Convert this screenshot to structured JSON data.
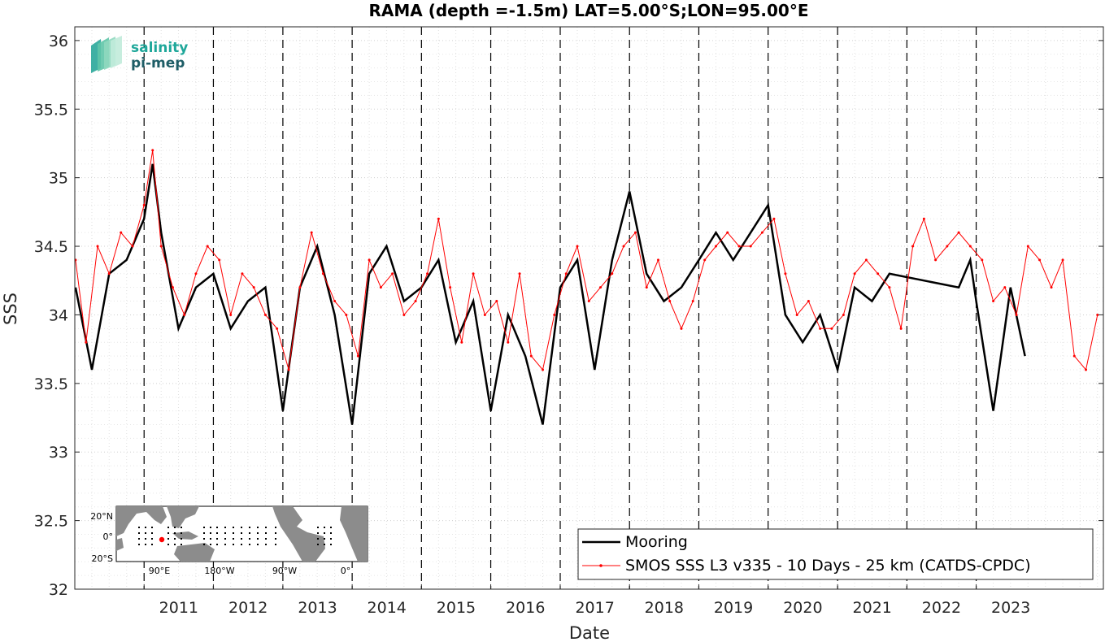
{
  "chart_data": {
    "type": "line",
    "title": "RAMA (depth =-1.5m) LAT=5.00°S;LON=95.00°E",
    "xlabel": "Date",
    "ylabel": "SSS",
    "xlim": [
      "2010-01-01",
      "2024-11-01"
    ],
    "ylim": [
      32,
      36.1
    ],
    "yticks": [
      "32",
      "32.5",
      "33",
      "33.5",
      "34",
      "34.5",
      "35",
      "35.5",
      "36"
    ],
    "xticks": [
      "2011",
      "2012",
      "2013",
      "2014",
      "2015",
      "2016",
      "2017",
      "2018",
      "2019",
      "2020",
      "2021",
      "2022",
      "2023"
    ],
    "year_boundaries": [
      "2011-01-01",
      "2012-01-01",
      "2013-01-01",
      "2014-01-01",
      "2015-01-01",
      "2016-01-01",
      "2017-01-01",
      "2018-01-01",
      "2019-01-01",
      "2020-01-01",
      "2021-01-01",
      "2022-01-01",
      "2023-01-01"
    ],
    "grid": true,
    "legend_position": "bottom-right",
    "series": [
      {
        "name": "Mooring",
        "color": "#000000",
        "x": [
          "2010-01-05",
          "2010-04-01",
          "2010-07-01",
          "2010-10-01",
          "2011-01-01",
          "2011-02-15",
          "2011-04-01",
          "2011-07-01",
          "2011-10-01",
          "2012-01-01",
          "2012-04-01",
          "2012-07-01",
          "2012-10-01",
          "2013-01-01",
          "2013-04-01",
          "2013-07-01",
          "2013-10-01",
          "2014-01-01",
          "2014-04-01",
          "2014-07-01",
          "2014-10-01",
          "2015-01-01",
          "2015-04-01",
          "2015-07-01",
          "2015-10-01",
          "2016-01-01",
          "2016-04-01",
          "2016-07-01",
          "2016-10-01",
          "2017-01-01",
          "2017-04-01",
          "2017-07-01",
          "2017-10-01",
          "2018-01-01",
          "2018-04-01",
          "2018-07-01",
          "2018-10-01",
          "2019-01-01",
          "2019-04-01",
          "2019-07-01",
          "2019-10-01",
          "2020-01-01",
          "2020-04-01",
          "2020-07-01",
          "2020-10-01",
          "2021-01-01",
          "2021-04-01",
          "2021-07-01",
          "2021-10-01",
          "2022-10-01",
          "2022-12-01",
          "2023-01-01",
          "2023-04-01",
          "2023-07-01",
          "2023-09-15"
        ],
        "y": [
          34.2,
          33.6,
          34.3,
          34.4,
          34.7,
          35.1,
          34.6,
          33.9,
          34.2,
          34.3,
          33.9,
          34.1,
          34.2,
          33.3,
          34.2,
          34.5,
          34.0,
          33.2,
          34.3,
          34.5,
          34.1,
          34.2,
          34.4,
          33.8,
          34.1,
          33.3,
          34.0,
          33.7,
          33.2,
          34.2,
          34.4,
          33.6,
          34.4,
          34.9,
          34.3,
          34.1,
          34.2,
          34.4,
          34.6,
          34.4,
          34.6,
          34.8,
          34.0,
          33.8,
          34.0,
          33.6,
          34.2,
          34.1,
          34.3,
          34.2,
          34.4,
          34.1,
          33.3,
          34.2,
          33.7
        ]
      },
      {
        "name": "SMOS SSS L3 v335 - 10 Days - 25 km (CATDS-CPDC)",
        "color": "#ff0000",
        "x": [
          "2010-01-05",
          "2010-03-01",
          "2010-05-01",
          "2010-07-01",
          "2010-09-01",
          "2010-11-01",
          "2011-01-01",
          "2011-02-15",
          "2011-04-01",
          "2011-06-01",
          "2011-08-01",
          "2011-10-01",
          "2011-12-01",
          "2012-02-01",
          "2012-04-01",
          "2012-06-01",
          "2012-08-01",
          "2012-10-01",
          "2012-12-01",
          "2013-02-01",
          "2013-04-01",
          "2013-06-01",
          "2013-08-01",
          "2013-10-01",
          "2013-12-01",
          "2014-02-01",
          "2014-04-01",
          "2014-06-01",
          "2014-08-01",
          "2014-10-01",
          "2014-12-01",
          "2015-02-01",
          "2015-04-01",
          "2015-06-01",
          "2015-08-01",
          "2015-10-01",
          "2015-12-01",
          "2016-02-01",
          "2016-04-01",
          "2016-06-01",
          "2016-08-01",
          "2016-10-01",
          "2016-12-01",
          "2017-02-01",
          "2017-04-01",
          "2017-06-01",
          "2017-08-01",
          "2017-10-01",
          "2017-12-01",
          "2018-02-01",
          "2018-04-01",
          "2018-06-01",
          "2018-08-01",
          "2018-10-01",
          "2018-12-01",
          "2019-02-01",
          "2019-04-01",
          "2019-06-01",
          "2019-08-01",
          "2019-10-01",
          "2019-12-01",
          "2020-02-01",
          "2020-04-01",
          "2020-06-01",
          "2020-08-01",
          "2020-10-01",
          "2020-12-01",
          "2021-02-01",
          "2021-04-01",
          "2021-06-01",
          "2021-08-01",
          "2021-10-01",
          "2021-12-01",
          "2022-02-01",
          "2022-04-01",
          "2022-06-01",
          "2022-08-01",
          "2022-10-01",
          "2022-12-01",
          "2023-02-01",
          "2023-04-01",
          "2023-06-01",
          "2023-08-01",
          "2023-10-01",
          "2023-12-01",
          "2024-02-01",
          "2024-04-01",
          "2024-06-01",
          "2024-08-01",
          "2024-10-01"
        ],
        "y": [
          34.4,
          33.8,
          34.5,
          34.3,
          34.6,
          34.5,
          34.8,
          35.2,
          34.5,
          34.2,
          34.0,
          34.3,
          34.5,
          34.4,
          34.0,
          34.3,
          34.2,
          34.0,
          33.9,
          33.6,
          34.2,
          34.6,
          34.3,
          34.1,
          34.0,
          33.7,
          34.4,
          34.2,
          34.3,
          34.0,
          34.1,
          34.3,
          34.7,
          34.2,
          33.8,
          34.3,
          34.0,
          34.1,
          33.8,
          34.3,
          33.7,
          33.6,
          34.0,
          34.3,
          34.5,
          34.1,
          34.2,
          34.3,
          34.5,
          34.6,
          34.2,
          34.4,
          34.1,
          33.9,
          34.1,
          34.4,
          34.5,
          34.6,
          34.5,
          34.5,
          34.6,
          34.7,
          34.3,
          34.0,
          34.1,
          33.9,
          33.9,
          34.0,
          34.3,
          34.4,
          34.3,
          34.2,
          33.9,
          34.5,
          34.7,
          34.4,
          34.5,
          34.6,
          34.5,
          34.4,
          34.1,
          34.2,
          34.0,
          34.5,
          34.4,
          34.2,
          34.4,
          33.7,
          33.6,
          34.0
        ]
      }
    ]
  },
  "logo": {
    "line1": "salinity",
    "line2": "pi-mep"
  },
  "inset_map": {
    "lat_labels": [
      "20°N",
      "0°",
      "20°S"
    ],
    "lon_labels": [
      "90°E",
      "180°W",
      "90°W",
      "0°"
    ],
    "marker_color": "#ff0000"
  }
}
